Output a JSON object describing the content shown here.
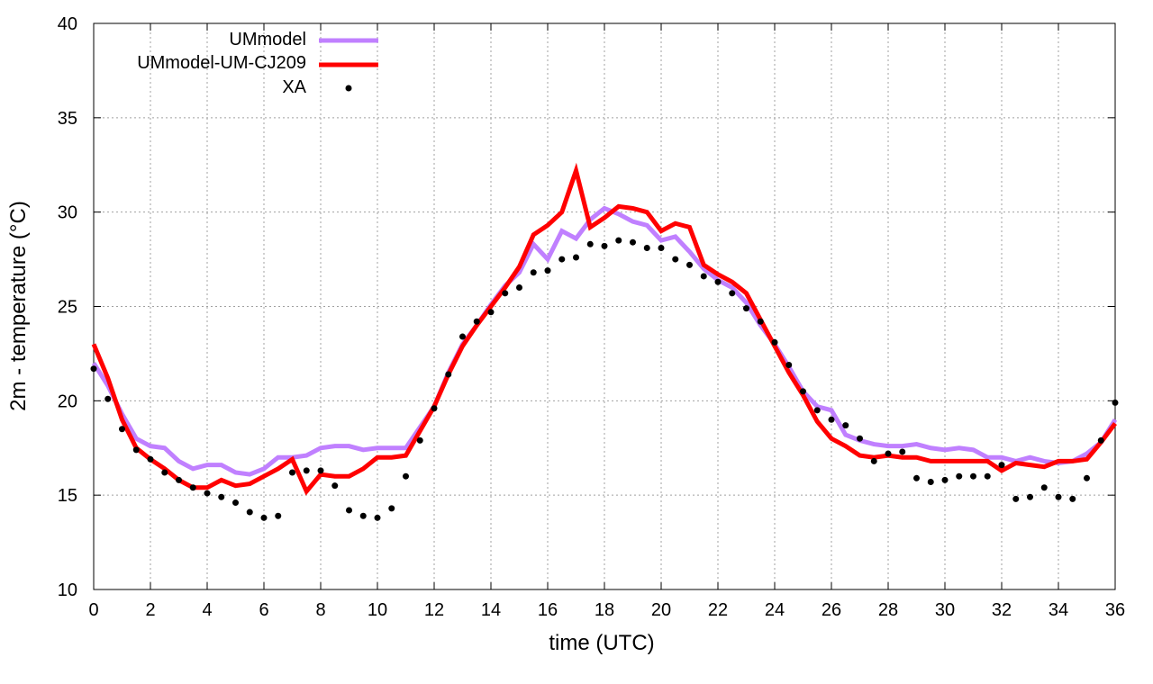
{
  "chart_data": {
    "type": "line",
    "title": "",
    "xlabel": "time (UTC)",
    "ylabel": "2m - temperature (°C)",
    "xlim": [
      0,
      36
    ],
    "ylim": [
      10,
      40
    ],
    "xticks": [
      0,
      2,
      4,
      6,
      8,
      10,
      12,
      14,
      16,
      18,
      20,
      22,
      24,
      26,
      28,
      30,
      32,
      34,
      36
    ],
    "yticks": [
      10,
      15,
      20,
      25,
      30,
      35,
      40
    ],
    "grid": true,
    "legend_position": "top-left",
    "series": [
      {
        "name": "UMmodel",
        "style": "line",
        "color": "#c080ff",
        "x": [
          0,
          0.5,
          1,
          1.5,
          2,
          2.5,
          3,
          3.5,
          4,
          4.5,
          5,
          5.5,
          6,
          6.5,
          7,
          7.5,
          8,
          8.5,
          9,
          9.5,
          10,
          10.5,
          11,
          11.5,
          12,
          12.5,
          13,
          13.5,
          14,
          14.5,
          15,
          15.5,
          16,
          16.5,
          17,
          17.5,
          18,
          18.5,
          19,
          19.5,
          20,
          20.5,
          21,
          21.5,
          22,
          22.5,
          23,
          23.5,
          24,
          24.5,
          25,
          25.5,
          26,
          26.5,
          27,
          27.5,
          28,
          28.5,
          29,
          29.5,
          30,
          30.5,
          31,
          31.5,
          32,
          32.5,
          33,
          33.5,
          34,
          34.5,
          35,
          35.5,
          36
        ],
        "values": [
          22.0,
          20.8,
          19.3,
          18.0,
          17.6,
          17.5,
          16.8,
          16.4,
          16.6,
          16.6,
          16.2,
          16.1,
          16.4,
          17.0,
          17.0,
          17.1,
          17.5,
          17.6,
          17.6,
          17.4,
          17.5,
          17.5,
          17.5,
          18.6,
          19.7,
          21.5,
          23.0,
          24.0,
          25.1,
          26.1,
          26.8,
          28.3,
          27.5,
          29.0,
          28.6,
          29.6,
          30.2,
          29.9,
          29.5,
          29.3,
          28.5,
          28.7,
          27.9,
          27.0,
          26.4,
          26.0,
          25.2,
          24.0,
          23.0,
          21.8,
          20.5,
          19.7,
          19.5,
          18.2,
          17.9,
          17.7,
          17.6,
          17.6,
          17.7,
          17.5,
          17.4,
          17.5,
          17.4,
          17.0,
          17.0,
          16.8,
          17.0,
          16.8,
          16.7,
          16.8,
          17.2,
          17.8,
          19.0
        ]
      },
      {
        "name": "UMmodel-UM-CJ209",
        "style": "line",
        "color": "#ff0000",
        "x": [
          0,
          0.5,
          1,
          1.5,
          2,
          2.5,
          3,
          3.5,
          4,
          4.5,
          5,
          5.5,
          6,
          6.5,
          7,
          7.5,
          8,
          8.5,
          9,
          9.5,
          10,
          10.5,
          11,
          11.5,
          12,
          12.5,
          13,
          13.5,
          14,
          14.5,
          15,
          15.5,
          16,
          16.5,
          17,
          17.5,
          18,
          18.5,
          19,
          19.5,
          20,
          20.5,
          21,
          21.5,
          22,
          22.5,
          23,
          23.5,
          24,
          24.5,
          25,
          25.5,
          26,
          26.5,
          27,
          27.5,
          28,
          28.5,
          29,
          29.5,
          30,
          30.5,
          31,
          31.5,
          32,
          32.5,
          33,
          33.5,
          34,
          34.5,
          35,
          35.5,
          36
        ],
        "values": [
          23.0,
          21.2,
          19.0,
          17.5,
          16.9,
          16.4,
          15.8,
          15.4,
          15.4,
          15.8,
          15.5,
          15.6,
          16.0,
          16.4,
          16.9,
          15.2,
          16.1,
          16.0,
          16.0,
          16.4,
          17.0,
          17.0,
          17.1,
          18.4,
          19.7,
          21.4,
          22.9,
          24.0,
          25.0,
          26.0,
          27.1,
          28.8,
          29.3,
          30.0,
          32.2,
          29.2,
          29.7,
          30.3,
          30.2,
          30.0,
          29.0,
          29.4,
          29.2,
          27.2,
          26.7,
          26.3,
          25.7,
          24.3,
          22.9,
          21.5,
          20.3,
          18.9,
          18.0,
          17.6,
          17.1,
          17.0,
          17.1,
          17.0,
          17.0,
          16.8,
          16.8,
          16.8,
          16.8,
          16.8,
          16.3,
          16.7,
          16.6,
          16.5,
          16.8,
          16.8,
          16.9,
          17.8,
          18.8
        ]
      },
      {
        "name": "XA",
        "style": "points",
        "color": "#000000",
        "x": [
          0,
          0.5,
          1,
          1.5,
          2,
          2.5,
          3,
          3.5,
          4,
          4.5,
          5,
          5.5,
          6,
          6.5,
          7,
          7.5,
          8,
          8.5,
          9,
          9.5,
          10,
          10.5,
          11,
          11.5,
          12,
          12.5,
          13,
          13.5,
          14,
          14.5,
          15,
          15.5,
          16,
          16.5,
          17,
          17.5,
          18,
          18.5,
          19,
          19.5,
          20,
          20.5,
          21,
          21.5,
          22,
          22.5,
          23,
          23.5,
          24,
          24.5,
          25,
          25.5,
          26,
          26.5,
          27,
          27.5,
          28,
          28.5,
          29,
          29.5,
          30,
          30.5,
          31,
          31.5,
          32,
          32.5,
          33,
          33.5,
          34,
          34.5,
          35,
          35.5,
          36
        ],
        "values": [
          21.7,
          20.1,
          18.5,
          17.4,
          16.9,
          16.2,
          15.8,
          15.4,
          15.1,
          14.9,
          14.6,
          14.1,
          13.8,
          13.9,
          16.2,
          16.3,
          16.3,
          15.5,
          14.2,
          13.9,
          13.8,
          14.3,
          16.0,
          17.9,
          19.6,
          21.4,
          23.4,
          24.2,
          24.7,
          25.7,
          26.0,
          26.8,
          26.9,
          27.5,
          27.6,
          28.3,
          28.2,
          28.5,
          28.4,
          28.1,
          28.1,
          27.5,
          27.2,
          26.6,
          26.3,
          25.7,
          24.9,
          24.2,
          23.1,
          21.9,
          20.5,
          19.5,
          19.0,
          18.7,
          18.0,
          16.8,
          17.2,
          17.3,
          15.9,
          15.7,
          15.8,
          16.0,
          16.0,
          16.0,
          16.6,
          14.8,
          14.9,
          15.4,
          14.9,
          14.8,
          15.9,
          17.9,
          19.9
        ]
      }
    ]
  }
}
